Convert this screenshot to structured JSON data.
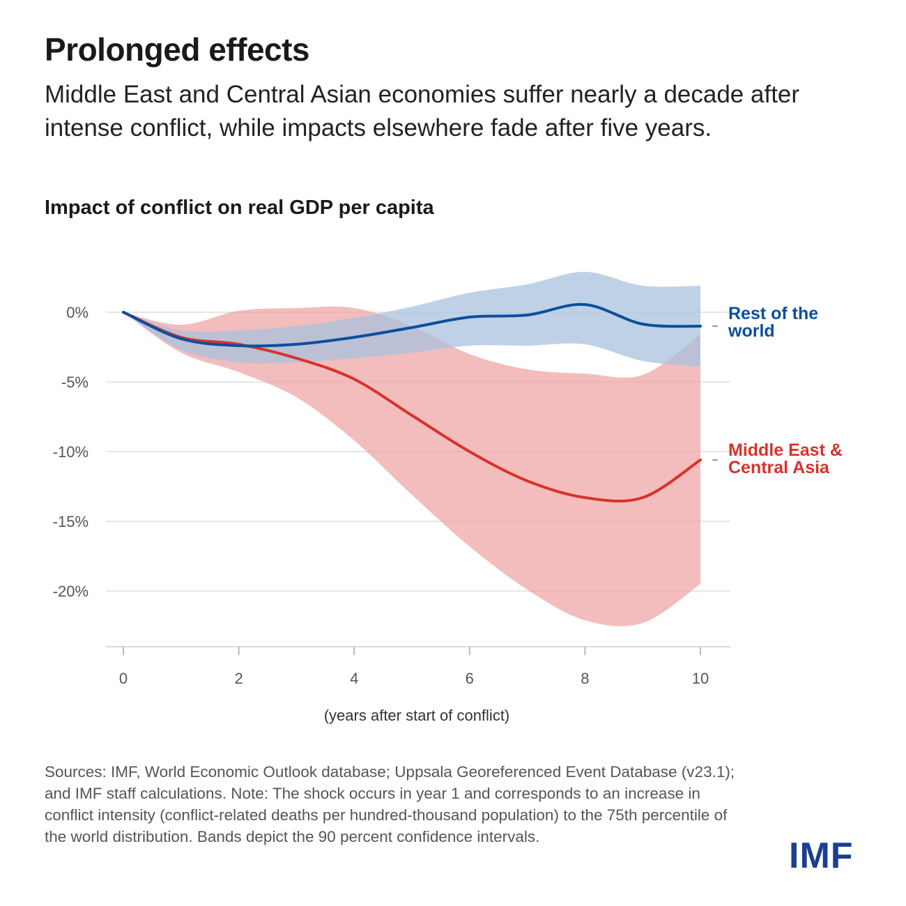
{
  "header": {
    "title": "Prolonged effects",
    "subtitle": "Middle East and Central Asian economies suffer nearly a decade after intense conflict, while impacts elsewhere fade after five years."
  },
  "chart_title": "Impact of conflict on real GDP per capita",
  "chart_data": {
    "type": "line",
    "xlabel": "(years after start of conflict)",
    "ylabel": "",
    "xlim": [
      0,
      10
    ],
    "ylim": [
      -24,
      3
    ],
    "x_ticks": [
      0,
      2,
      4,
      6,
      8,
      10
    ],
    "y_ticks": [
      0,
      -5,
      -10,
      -15,
      -20
    ],
    "y_tick_labels": [
      "0%",
      "-5%",
      "-10%",
      "-15%",
      "-20%"
    ],
    "grid": "horizontal",
    "series": [
      {
        "name": "Rest of the world",
        "color": "#0a4f9e",
        "band_color": "#a9c1dd",
        "x": [
          0,
          1,
          2,
          3,
          4,
          5,
          6,
          7,
          8,
          9,
          10
        ],
        "values": [
          0,
          -1.9,
          -2.4,
          -2.3,
          -1.8,
          -1.1,
          -0.35,
          -0.2,
          0.55,
          -0.85,
          -1.0
        ],
        "upper": [
          0,
          -1.3,
          -1.3,
          -1.0,
          -0.4,
          0.4,
          1.4,
          2.0,
          2.9,
          1.9,
          1.9
        ],
        "lower": [
          0,
          -2.7,
          -3.6,
          -3.6,
          -3.3,
          -2.9,
          -2.4,
          -2.4,
          -2.3,
          -3.5,
          -3.9
        ]
      },
      {
        "name": "Middle East & Central Asia",
        "color": "#d8322c",
        "band_color": "#eda19f",
        "x": [
          0,
          1,
          2,
          3,
          4,
          5,
          6,
          7,
          8,
          9,
          10
        ],
        "values": [
          0,
          -1.8,
          -2.3,
          -3.3,
          -4.8,
          -7.4,
          -10.0,
          -12.1,
          -13.3,
          -13.3,
          -10.6
        ],
        "upper": [
          0,
          -0.9,
          0.1,
          0.3,
          0.3,
          -1.0,
          -3.0,
          -4.1,
          -4.4,
          -4.5,
          -1.6
        ],
        "lower": [
          0,
          -2.9,
          -4.3,
          -6.1,
          -9.2,
          -13.1,
          -16.8,
          -19.9,
          -22.1,
          -22.3,
          -19.5
        ]
      }
    ]
  },
  "sources": "Sources: IMF, World Economic Outlook database; Uppsala Georeferenced Event Database (v23.1); and IMF staff calculations. Note: The shock occurs in year 1 and corresponds to an increase in conflict intensity (conflict-related deaths per hundred-thousand population) to the 75th percentile of the world distribution. Bands depict the 90 percent confidence intervals.",
  "logo_text": "IMF"
}
